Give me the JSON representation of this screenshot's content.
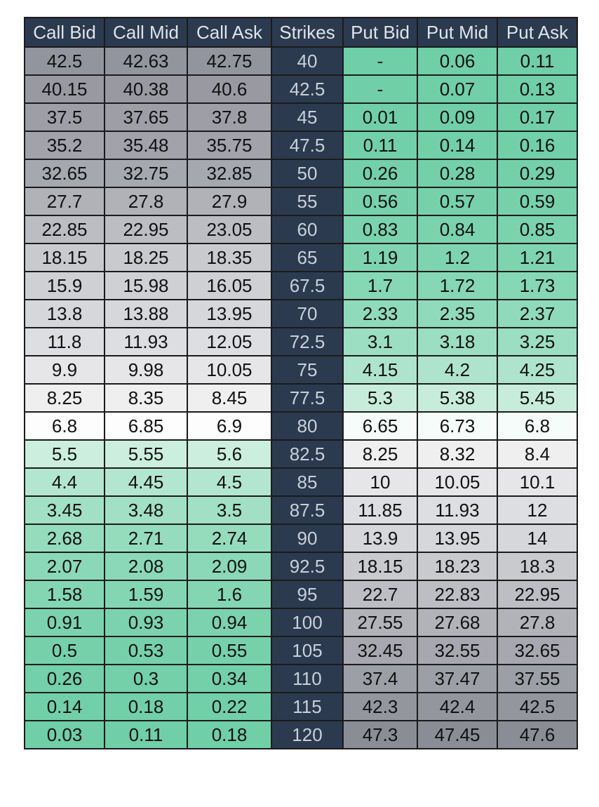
{
  "chart_data": {
    "type": "table",
    "columns": [
      "Call Bid",
      "Call Mid",
      "Call Ask",
      "Strikes",
      "Put Bid",
      "Put Mid",
      "Put Ask"
    ],
    "rows": [
      [
        "42.5",
        "42.63",
        "42.75",
        "40",
        "-",
        "0.06",
        "0.11"
      ],
      [
        "40.15",
        "40.38",
        "40.6",
        "42.5",
        "-",
        "0.07",
        "0.13"
      ],
      [
        "37.5",
        "37.65",
        "37.8",
        "45",
        "0.01",
        "0.09",
        "0.17"
      ],
      [
        "35.2",
        "35.48",
        "35.75",
        "47.5",
        "0.11",
        "0.14",
        "0.16"
      ],
      [
        "32.65",
        "32.75",
        "32.85",
        "50",
        "0.26",
        "0.28",
        "0.29"
      ],
      [
        "27.7",
        "27.8",
        "27.9",
        "55",
        "0.56",
        "0.57",
        "0.59"
      ],
      [
        "22.85",
        "22.95",
        "23.05",
        "60",
        "0.83",
        "0.84",
        "0.85"
      ],
      [
        "18.15",
        "18.25",
        "18.35",
        "65",
        "1.19",
        "1.2",
        "1.21"
      ],
      [
        "15.9",
        "15.98",
        "16.05",
        "67.5",
        "1.7",
        "1.72",
        "1.73"
      ],
      [
        "13.8",
        "13.88",
        "13.95",
        "70",
        "2.33",
        "2.35",
        "2.37"
      ],
      [
        "11.8",
        "11.93",
        "12.05",
        "72.5",
        "3.1",
        "3.18",
        "3.25"
      ],
      [
        "9.9",
        "9.98",
        "10.05",
        "75",
        "4.15",
        "4.2",
        "4.25"
      ],
      [
        "8.25",
        "8.35",
        "8.45",
        "77.5",
        "5.3",
        "5.38",
        "5.45"
      ],
      [
        "6.8",
        "6.85",
        "6.9",
        "80",
        "6.65",
        "6.73",
        "6.8"
      ],
      [
        "5.5",
        "5.55",
        "5.6",
        "82.5",
        "8.25",
        "8.32",
        "8.4"
      ],
      [
        "4.4",
        "4.45",
        "4.5",
        "85",
        "10",
        "10.05",
        "10.1"
      ],
      [
        "3.45",
        "3.48",
        "3.5",
        "87.5",
        "11.85",
        "11.93",
        "12"
      ],
      [
        "2.68",
        "2.71",
        "2.74",
        "90",
        "13.9",
        "13.95",
        "14"
      ],
      [
        "2.07",
        "2.08",
        "2.09",
        "92.5",
        "18.15",
        "18.23",
        "18.3"
      ],
      [
        "1.58",
        "1.59",
        "1.6",
        "95",
        "22.7",
        "22.83",
        "22.95"
      ],
      [
        "0.91",
        "0.93",
        "0.94",
        "100",
        "27.55",
        "27.68",
        "27.8"
      ],
      [
        "0.5",
        "0.53",
        "0.55",
        "105",
        "32.45",
        "32.55",
        "32.65"
      ],
      [
        "0.26",
        "0.3",
        "0.34",
        "110",
        "37.4",
        "37.47",
        "37.55"
      ],
      [
        "0.14",
        "0.18",
        "0.22",
        "115",
        "42.3",
        "42.4",
        "42.5"
      ],
      [
        "0.03",
        "0.11",
        "0.18",
        "120",
        "47.3",
        "47.45",
        "47.6"
      ]
    ],
    "colors": {
      "header": "#2b3a4f",
      "header_text": "#dfe4ea",
      "strike_text": "#c9d0da",
      "cell_text": "#111111",
      "grid": "#1b1b1b",
      "scale_low": "#6fcfa6",
      "scale_mid": "#ffffff",
      "scale_high": "#8a8c95"
    },
    "color_scale_midpoint": 6.8
  }
}
